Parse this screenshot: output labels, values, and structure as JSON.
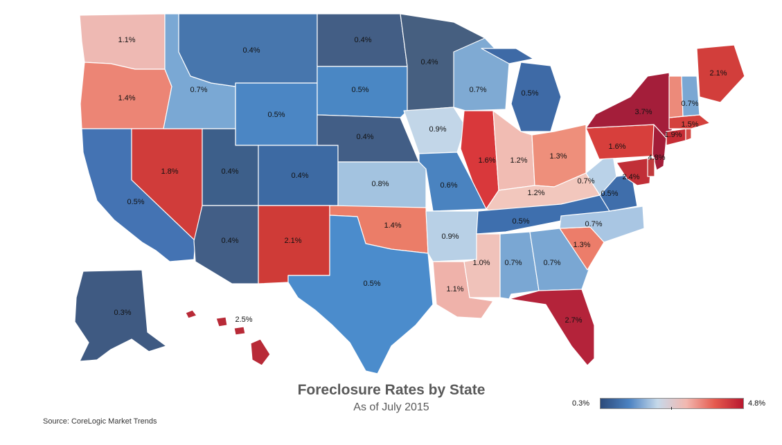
{
  "title": "Foreclosure Rates by State",
  "subtitle": "As of July 2015",
  "source": "Source: CoreLogic Market Trends",
  "legend": {
    "min_label": "0.3%",
    "max_label": "4.8%",
    "min": 0.3,
    "max": 4.8,
    "colors": [
      "#2c4a7a",
      "#4b82c2",
      "#c6d9ea",
      "#f2b8b0",
      "#e55a4e",
      "#b8182f"
    ]
  },
  "states": {
    "WA": {
      "label": "1.1%",
      "value": 1.1,
      "color": "#eeb9b3"
    },
    "OR": {
      "label": "1.4%",
      "value": 1.4,
      "color": "#ec8575"
    },
    "CA": {
      "label": "0.5%",
      "value": 0.5,
      "color": "#4473b3"
    },
    "NV": {
      "label": "1.8%",
      "value": 1.8,
      "color": "#d03c3a"
    },
    "ID": {
      "label": "0.7%",
      "value": 0.7,
      "color": "#7aa8d4"
    },
    "MT": {
      "label": "0.4%",
      "value": 0.4,
      "color": "#4776ad"
    },
    "WY": {
      "label": "0.5%",
      "value": 0.5,
      "color": "#4b86c4"
    },
    "UT": {
      "label": "0.4%",
      "value": 0.4,
      "color": "#3d5f8a"
    },
    "AZ": {
      "label": "0.4%",
      "value": 0.4,
      "color": "#425e86"
    },
    "CO": {
      "label": "0.4%",
      "value": 0.4,
      "color": "#3d6aa3"
    },
    "NM": {
      "label": "2.1%",
      "value": 2.1,
      "color": "#cf3b37"
    },
    "ND": {
      "label": "0.4%",
      "value": 0.4,
      "color": "#435e85"
    },
    "SD": {
      "label": "0.5%",
      "value": 0.5,
      "color": "#4a87c4"
    },
    "NE": {
      "label": "0.4%",
      "value": 0.4,
      "color": "#425e86"
    },
    "KS": {
      "label": "0.8%",
      "value": 0.8,
      "color": "#a3c3e0"
    },
    "OK": {
      "label": "1.4%",
      "value": 1.4,
      "color": "#eb7d68"
    },
    "TX": {
      "label": "0.5%",
      "value": 0.5,
      "color": "#4b8ccc"
    },
    "MN": {
      "label": "0.4%",
      "value": 0.4,
      "color": "#465f80"
    },
    "IA": {
      "label": "0.9%",
      "value": 0.9,
      "color": "#c2d6e8"
    },
    "MO": {
      "label": "0.6%",
      "value": 0.6,
      "color": "#4a83c0"
    },
    "AR": {
      "label": "0.9%",
      "value": 0.9,
      "color": "#b8d0e6"
    },
    "LA": {
      "label": "1.1%",
      "value": 1.1,
      "color": "#efb2aa"
    },
    "WI": {
      "label": "0.7%",
      "value": 0.7,
      "color": "#7faad3"
    },
    "IL": {
      "label": "1.6%",
      "value": 1.6,
      "color": "#d9383b"
    },
    "MI": {
      "label": "0.5%",
      "value": 0.5,
      "color": "#3e6aa6"
    },
    "IN": {
      "label": "1.2%",
      "value": 1.2,
      "color": "#f1bcb3"
    },
    "OH": {
      "label": "1.3%",
      "value": 1.3,
      "color": "#ee8f7b"
    },
    "KY": {
      "label": "1.2%",
      "value": 1.2,
      "color": "#f2c7bd"
    },
    "TN": {
      "label": "0.5%",
      "value": 0.5,
      "color": "#3e6fae"
    },
    "MS": {
      "label": "1.0%",
      "value": 1.0,
      "color": "#f0c2ba"
    },
    "AL": {
      "label": "0.7%",
      "value": 0.7,
      "color": "#7aa7d3"
    },
    "GA": {
      "label": "0.7%",
      "value": 0.7,
      "color": "#7aa7d3"
    },
    "FL": {
      "label": "2.7%",
      "value": 2.7,
      "color": "#b4233a"
    },
    "SC": {
      "label": "1.3%",
      "value": 1.3,
      "color": "#ec7d6a"
    },
    "NC": {
      "label": "0.7%",
      "value": 0.7,
      "color": "#a9c6e3"
    },
    "VA": {
      "label": "0.5%",
      "value": 0.5,
      "color": "#3f6eab"
    },
    "WV": {
      "label": "0.7%",
      "value": 0.7,
      "color": "#bad2e8"
    },
    "PA": {
      "label": "1.6%",
      "value": 1.6,
      "color": "#d73f3c"
    },
    "NY": {
      "label": "3.7%",
      "value": 3.7,
      "color": "#a41e3a"
    },
    "MD": {
      "label": "2.4%",
      "value": 2.4,
      "color": "#c12f37"
    },
    "NJ": {
      "label": "4.8%",
      "value": 4.8,
      "color": "#a31d38"
    },
    "DE": {
      "label": "",
      "value": null,
      "color": "#c13a3c"
    },
    "CT": {
      "label": "1.9%",
      "value": 1.9,
      "color": "#c62d35"
    },
    "RI": {
      "label": "",
      "value": null,
      "color": "#d44a45"
    },
    "MA": {
      "label": "1.5%",
      "value": 1.5,
      "color": "#d4413d"
    },
    "VT": {
      "label": "",
      "value": null,
      "color": "#ec8a7a"
    },
    "NH": {
      "label": "0.7%",
      "value": 0.7,
      "color": "#7aa7d3"
    },
    "ME": {
      "label": "2.1%",
      "value": 2.1,
      "color": "#d23e3b"
    },
    "AK": {
      "label": "0.3%",
      "value": 0.3,
      "color": "#3f5a82"
    },
    "HI": {
      "label": "2.5%",
      "value": 2.5,
      "color": "#b82a37"
    }
  }
}
